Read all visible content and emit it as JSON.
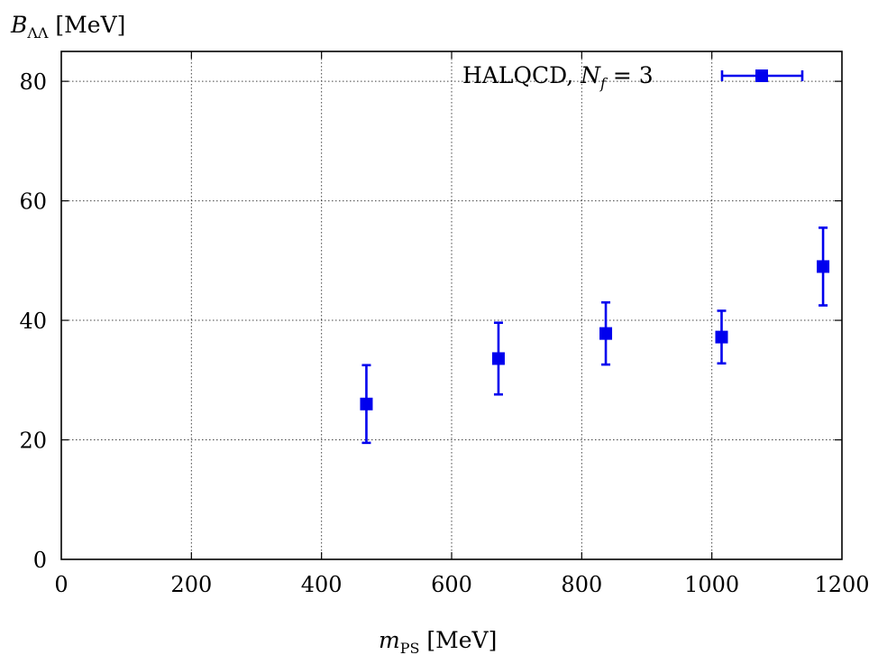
{
  "chart_data": {
    "type": "scatter",
    "title": "",
    "xlabel": "m_PS [MeV]",
    "ylabel": "B_ΛΛ [MeV]",
    "xlim": [
      0,
      1200
    ],
    "ylim": [
      0,
      85
    ],
    "xticks": [
      0,
      200,
      400,
      600,
      800,
      1000,
      1200
    ],
    "yticks": [
      0,
      20,
      40,
      60,
      80
    ],
    "grid": true,
    "legend_position": "top-right",
    "series": [
      {
        "name": "HALQCD, N_f = 3",
        "color": "#0000ee",
        "marker": "square",
        "points": [
          {
            "x": 469,
            "y": 26.0,
            "err_low": 6.5,
            "err_high": 6.5
          },
          {
            "x": 672,
            "y": 33.6,
            "err_low": 6.0,
            "err_high": 6.0
          },
          {
            "x": 837,
            "y": 37.8,
            "err_low": 5.2,
            "err_high": 5.2
          },
          {
            "x": 1015,
            "y": 37.2,
            "err_low": 4.4,
            "err_high": 4.4
          },
          {
            "x": 1171,
            "y": 49.0,
            "err_low": 6.5,
            "err_high": 6.5
          }
        ]
      }
    ]
  }
}
